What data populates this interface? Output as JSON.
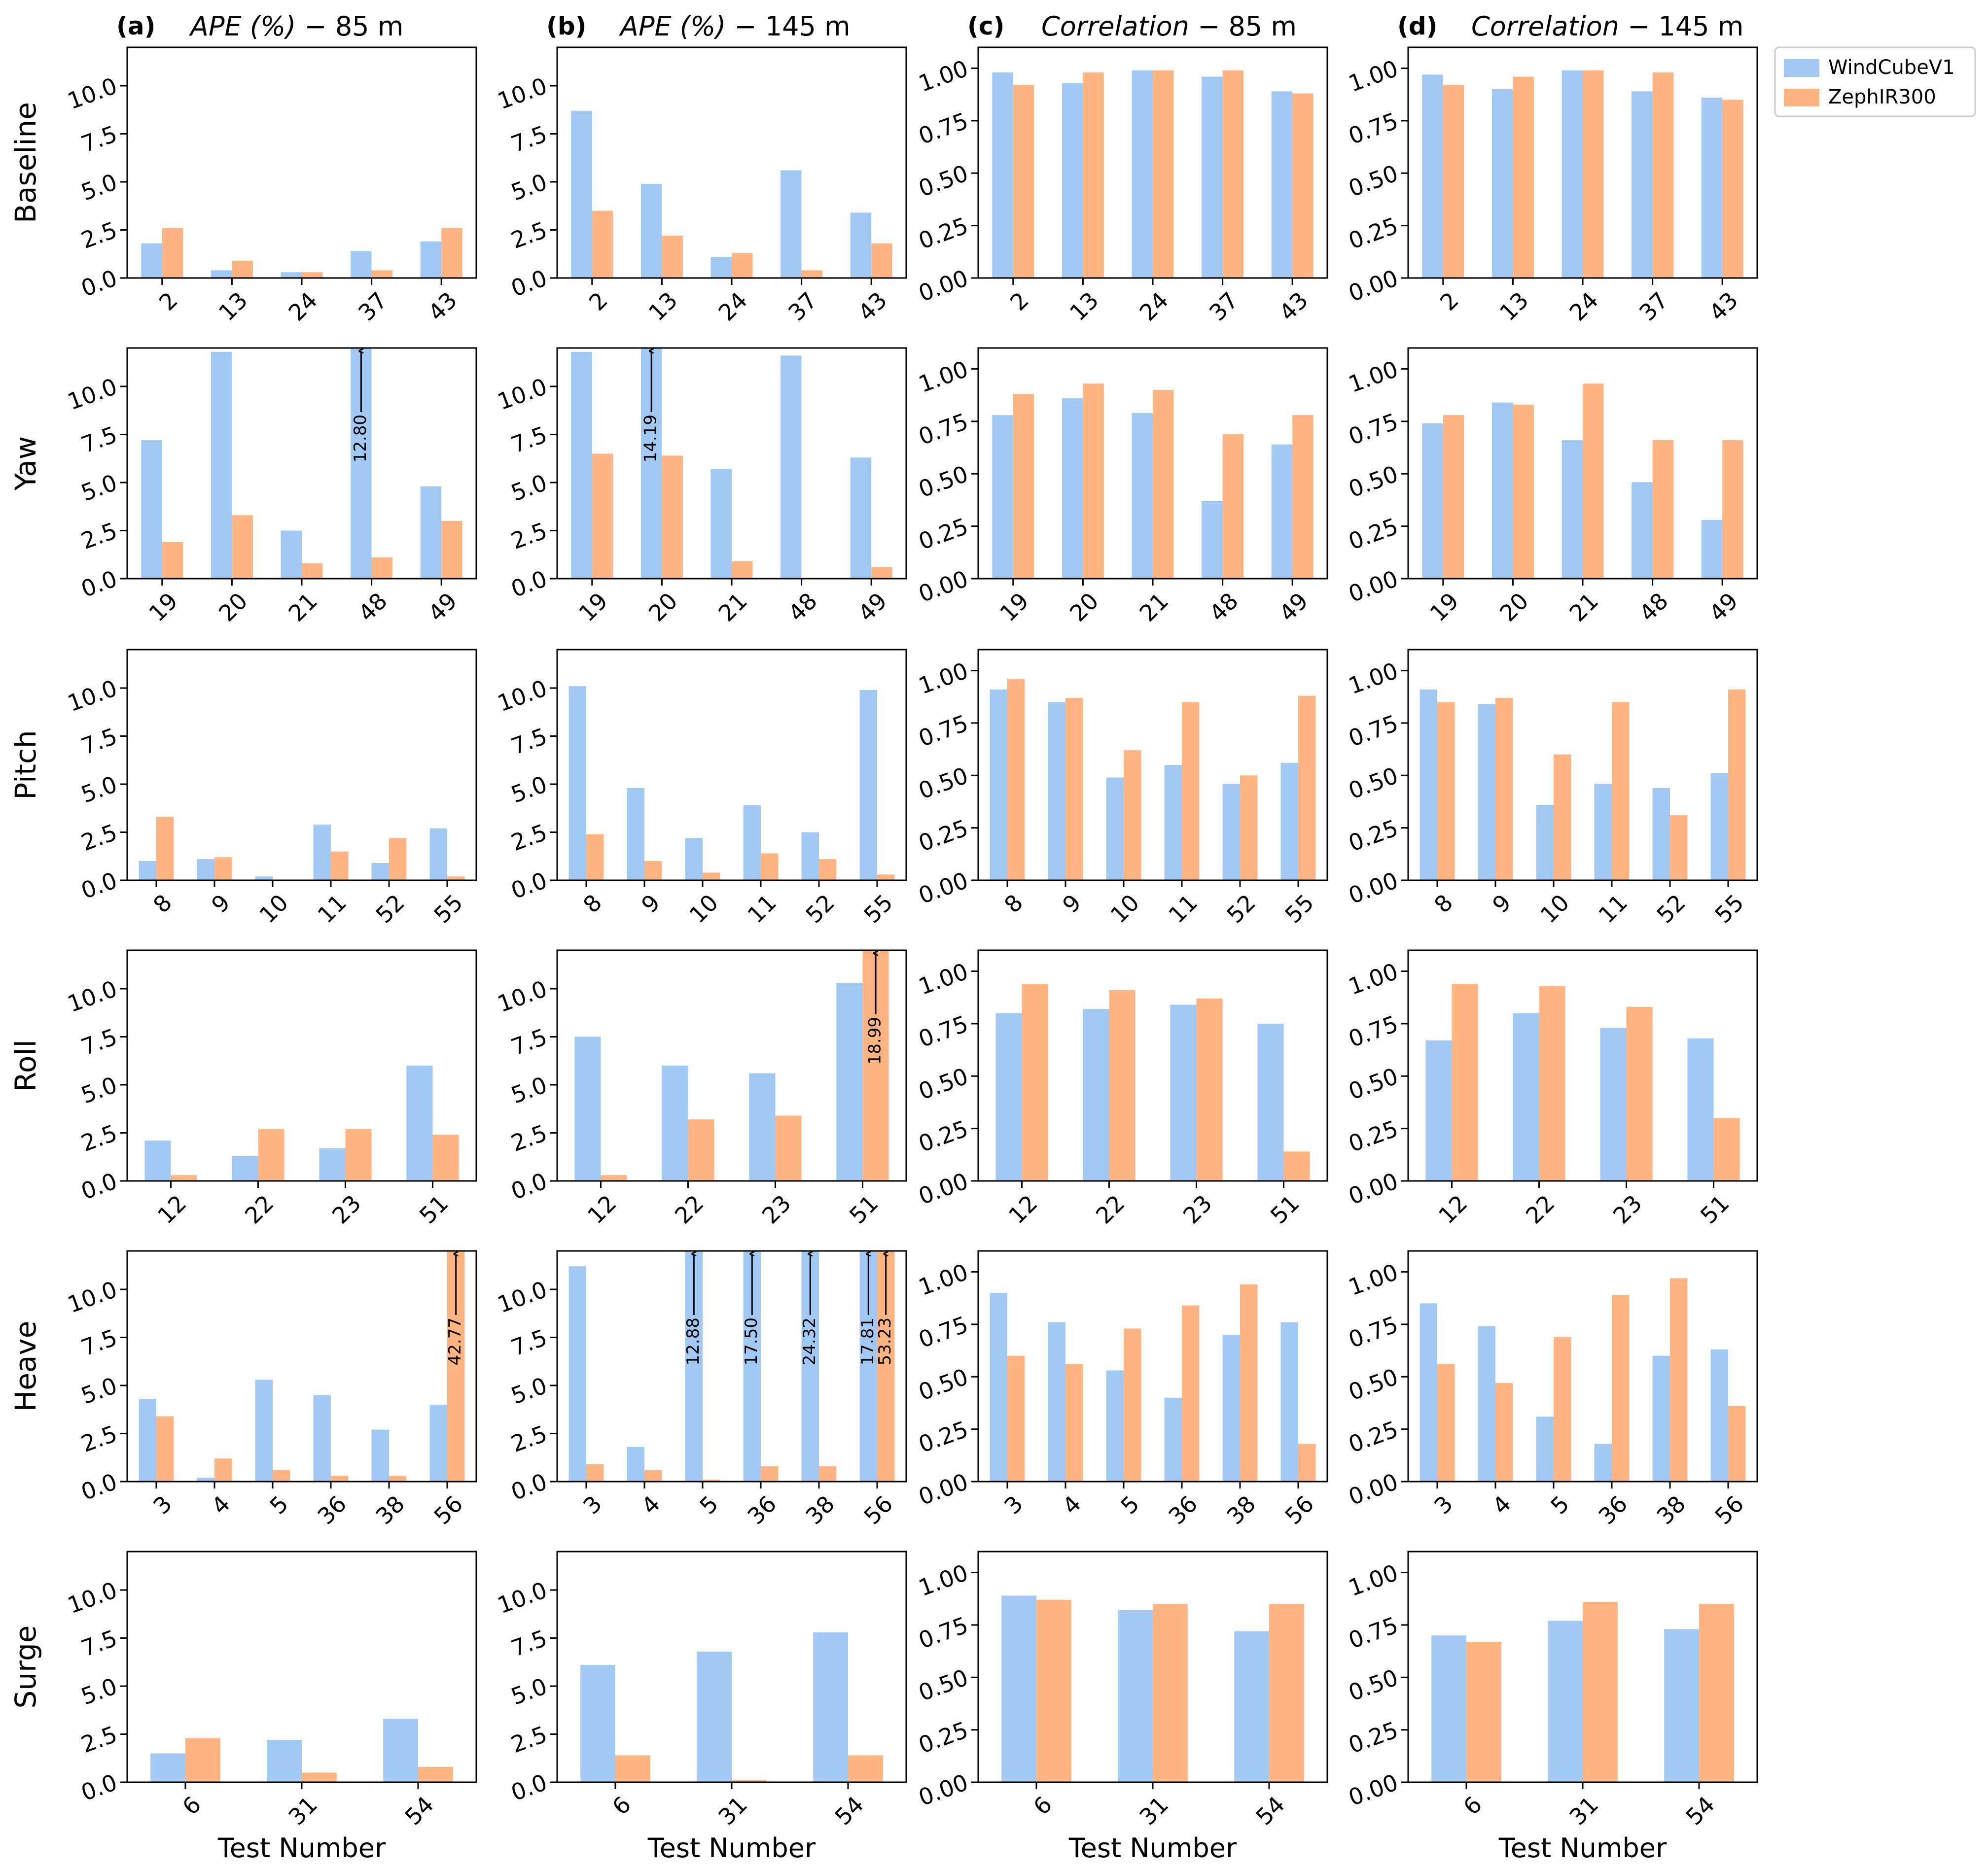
{
  "chart_data": {
    "type": "bar",
    "layout": "6 rows x 4 columns grid of grouped bar charts",
    "legend": {
      "position": "top-right",
      "entries": [
        {
          "name": "WindCubeV1",
          "color": "#a1c9f4"
        },
        {
          "name": "ZephIR300",
          "color": "#ffb482"
        }
      ]
    },
    "xlabel": "Test Number",
    "columns": [
      {
        "letter": "(a)",
        "metric": "APE (%)",
        "height": "85 m",
        "ylim": [
          0,
          12
        ],
        "yticks": [
          "0.0",
          "2.5",
          "5.0",
          "7.5",
          "10.0"
        ]
      },
      {
        "letter": "(b)",
        "metric": "APE (%)",
        "height": "145 m",
        "ylim": [
          0,
          12
        ],
        "yticks": [
          "0.0",
          "2.5",
          "5.0",
          "7.5",
          "10.0"
        ]
      },
      {
        "letter": "(c)",
        "metric": "Correlation",
        "height": "85 m",
        "ylim": [
          0,
          1.1
        ],
        "yticks": [
          "0.00",
          "0.25",
          "0.50",
          "0.75",
          "1.00"
        ]
      },
      {
        "letter": "(d)",
        "metric": "Correlation",
        "height": "145 m",
        "ylim": [
          0,
          1.1
        ],
        "yticks": [
          "0.00",
          "0.25",
          "0.50",
          "0.75",
          "1.00"
        ]
      }
    ],
    "rows": [
      {
        "label": "Baseline",
        "categories": [
          "2",
          "13",
          "24",
          "37",
          "43"
        ],
        "panels": [
          {
            "series": [
              {
                "name": "WindCubeV1",
                "values": [
                  1.8,
                  0.4,
                  0.3,
                  1.4,
                  1.9
                ]
              },
              {
                "name": "ZephIR300",
                "values": [
                  2.6,
                  0.9,
                  0.3,
                  0.4,
                  2.6
                ]
              }
            ],
            "annotations": []
          },
          {
            "series": [
              {
                "name": "WindCubeV1",
                "values": [
                  8.7,
                  4.9,
                  1.1,
                  5.6,
                  3.4
                ]
              },
              {
                "name": "ZephIR300",
                "values": [
                  3.5,
                  2.2,
                  1.3,
                  0.4,
                  1.8
                ]
              }
            ],
            "annotations": []
          },
          {
            "series": [
              {
                "name": "WindCubeV1",
                "values": [
                  0.98,
                  0.93,
                  0.99,
                  0.96,
                  0.89
                ]
              },
              {
                "name": "ZephIR300",
                "values": [
                  0.92,
                  0.98,
                  0.99,
                  0.99,
                  0.88
                ]
              }
            ],
            "annotations": []
          },
          {
            "series": [
              {
                "name": "WindCubeV1",
                "values": [
                  0.97,
                  0.9,
                  0.99,
                  0.89,
                  0.86
                ]
              },
              {
                "name": "ZephIR300",
                "values": [
                  0.92,
                  0.96,
                  0.99,
                  0.98,
                  0.85
                ]
              }
            ],
            "annotations": []
          }
        ]
      },
      {
        "label": "Yaw",
        "categories": [
          "19",
          "20",
          "21",
          "48",
          "49"
        ],
        "panels": [
          {
            "series": [
              {
                "name": "WindCubeV1",
                "values": [
                  7.2,
                  11.8,
                  2.5,
                  12.8,
                  4.8
                ]
              },
              {
                "name": "ZephIR300",
                "values": [
                  1.9,
                  3.3,
                  0.8,
                  1.1,
                  3.0
                ]
              }
            ],
            "annotations": [
              {
                "series": 0,
                "index": 3,
                "text": "12.80"
              }
            ]
          },
          {
            "series": [
              {
                "name": "WindCubeV1",
                "values": [
                  11.8,
                  14.19,
                  5.7,
                  11.6,
                  6.3
                ]
              },
              {
                "name": "ZephIR300",
                "values": [
                  6.5,
                  6.4,
                  0.9,
                  0.0,
                  0.6
                ]
              }
            ],
            "annotations": [
              {
                "series": 0,
                "index": 1,
                "text": "14.19"
              }
            ]
          },
          {
            "series": [
              {
                "name": "WindCubeV1",
                "values": [
                  0.78,
                  0.86,
                  0.79,
                  0.37,
                  0.64
                ]
              },
              {
                "name": "ZephIR300",
                "values": [
                  0.88,
                  0.93,
                  0.9,
                  0.69,
                  0.78
                ]
              }
            ],
            "annotations": []
          },
          {
            "series": [
              {
                "name": "WindCubeV1",
                "values": [
                  0.74,
                  0.84,
                  0.66,
                  0.46,
                  0.28
                ]
              },
              {
                "name": "ZephIR300",
                "values": [
                  0.78,
                  0.83,
                  0.93,
                  0.66,
                  0.66
                ]
              }
            ],
            "annotations": []
          }
        ]
      },
      {
        "label": "Pitch",
        "categories": [
          "8",
          "9",
          "10",
          "11",
          "52",
          "55"
        ],
        "panels": [
          {
            "series": [
              {
                "name": "WindCubeV1",
                "values": [
                  1.0,
                  1.1,
                  0.2,
                  2.9,
                  0.9,
                  2.7
                ]
              },
              {
                "name": "ZephIR300",
                "values": [
                  3.3,
                  1.2,
                  0.0,
                  1.5,
                  2.2,
                  0.2
                ]
              }
            ],
            "annotations": []
          },
          {
            "series": [
              {
                "name": "WindCubeV1",
                "values": [
                  10.1,
                  4.8,
                  2.2,
                  3.9,
                  2.5,
                  9.9
                ]
              },
              {
                "name": "ZephIR300",
                "values": [
                  2.4,
                  1.0,
                  0.4,
                  1.4,
                  1.1,
                  0.3
                ]
              }
            ],
            "annotations": []
          },
          {
            "series": [
              {
                "name": "WindCubeV1",
                "values": [
                  0.91,
                  0.85,
                  0.49,
                  0.55,
                  0.46,
                  0.56
                ]
              },
              {
                "name": "ZephIR300",
                "values": [
                  0.96,
                  0.87,
                  0.62,
                  0.85,
                  0.5,
                  0.88
                ]
              }
            ],
            "annotations": []
          },
          {
            "series": [
              {
                "name": "WindCubeV1",
                "values": [
                  0.91,
                  0.84,
                  0.36,
                  0.46,
                  0.44,
                  0.51
                ]
              },
              {
                "name": "ZephIR300",
                "values": [
                  0.85,
                  0.87,
                  0.6,
                  0.85,
                  0.31,
                  0.91
                ]
              }
            ],
            "annotations": []
          }
        ]
      },
      {
        "label": "Roll",
        "categories": [
          "12",
          "22",
          "23",
          "51"
        ],
        "panels": [
          {
            "series": [
              {
                "name": "WindCubeV1",
                "values": [
                  2.1,
                  1.3,
                  1.7,
                  6.0
                ]
              },
              {
                "name": "ZephIR300",
                "values": [
                  0.3,
                  2.7,
                  2.7,
                  2.4
                ]
              }
            ],
            "annotations": []
          },
          {
            "series": [
              {
                "name": "WindCubeV1",
                "values": [
                  7.5,
                  6.0,
                  5.6,
                  10.3
                ]
              },
              {
                "name": "ZephIR300",
                "values": [
                  0.3,
                  3.2,
                  3.4,
                  18.99
                ]
              }
            ],
            "annotations": [
              {
                "series": 1,
                "index": 3,
                "text": "18.99"
              }
            ]
          },
          {
            "series": [
              {
                "name": "WindCubeV1",
                "values": [
                  0.8,
                  0.82,
                  0.84,
                  0.75
                ]
              },
              {
                "name": "ZephIR300",
                "values": [
                  0.94,
                  0.91,
                  0.87,
                  0.14
                ]
              }
            ],
            "annotations": []
          },
          {
            "series": [
              {
                "name": "WindCubeV1",
                "values": [
                  0.67,
                  0.8,
                  0.73,
                  0.68
                ]
              },
              {
                "name": "ZephIR300",
                "values": [
                  0.94,
                  0.93,
                  0.83,
                  0.3
                ]
              }
            ],
            "annotations": []
          }
        ]
      },
      {
        "label": "Heave",
        "categories": [
          "3",
          "4",
          "5",
          "36",
          "38",
          "56"
        ],
        "panels": [
          {
            "series": [
              {
                "name": "WindCubeV1",
                "values": [
                  4.3,
                  0.2,
                  5.3,
                  4.5,
                  2.7,
                  4.0
                ]
              },
              {
                "name": "ZephIR300",
                "values": [
                  3.4,
                  1.2,
                  0.6,
                  0.3,
                  0.3,
                  42.77
                ]
              }
            ],
            "annotations": [
              {
                "series": 1,
                "index": 5,
                "text": "42.77"
              }
            ]
          },
          {
            "series": [
              {
                "name": "WindCubeV1",
                "values": [
                  11.2,
                  1.8,
                  12.88,
                  17.5,
                  24.32,
                  17.81
                ]
              },
              {
                "name": "ZephIR300",
                "values": [
                  0.9,
                  0.6,
                  0.1,
                  0.8,
                  0.8,
                  53.23
                ]
              }
            ],
            "annotations": [
              {
                "series": 0,
                "index": 2,
                "text": "12.88"
              },
              {
                "series": 0,
                "index": 3,
                "text": "17.50"
              },
              {
                "series": 0,
                "index": 4,
                "text": "24.32"
              },
              {
                "series": 0,
                "index": 5,
                "text": "17.81"
              },
              {
                "series": 1,
                "index": 5,
                "text": "53.23"
              }
            ]
          },
          {
            "series": [
              {
                "name": "WindCubeV1",
                "values": [
                  0.9,
                  0.76,
                  0.53,
                  0.4,
                  0.7,
                  0.76
                ]
              },
              {
                "name": "ZephIR300",
                "values": [
                  0.6,
                  0.56,
                  0.73,
                  0.84,
                  0.94,
                  0.18
                ]
              }
            ],
            "annotations": []
          },
          {
            "series": [
              {
                "name": "WindCubeV1",
                "values": [
                  0.85,
                  0.74,
                  0.31,
                  0.18,
                  0.6,
                  0.63
                ]
              },
              {
                "name": "ZephIR300",
                "values": [
                  0.56,
                  0.47,
                  0.69,
                  0.89,
                  0.97,
                  0.36
                ]
              }
            ],
            "annotations": []
          }
        ]
      },
      {
        "label": "Surge",
        "categories": [
          "6",
          "31",
          "54"
        ],
        "panels": [
          {
            "series": [
              {
                "name": "WindCubeV1",
                "values": [
                  1.5,
                  2.2,
                  3.3
                ]
              },
              {
                "name": "ZephIR300",
                "values": [
                  2.3,
                  0.5,
                  0.8
                ]
              }
            ],
            "annotations": []
          },
          {
            "series": [
              {
                "name": "WindCubeV1",
                "values": [
                  6.1,
                  6.8,
                  7.8
                ]
              },
              {
                "name": "ZephIR300",
                "values": [
                  1.4,
                  0.1,
                  1.4
                ]
              }
            ],
            "annotations": []
          },
          {
            "series": [
              {
                "name": "WindCubeV1",
                "values": [
                  0.89,
                  0.82,
                  0.72
                ]
              },
              {
                "name": "ZephIR300",
                "values": [
                  0.87,
                  0.85,
                  0.85
                ]
              }
            ],
            "annotations": []
          },
          {
            "series": [
              {
                "name": "WindCubeV1",
                "values": [
                  0.7,
                  0.77,
                  0.73
                ]
              },
              {
                "name": "ZephIR300",
                "values": [
                  0.67,
                  0.86,
                  0.85
                ]
              }
            ],
            "annotations": []
          }
        ]
      }
    ]
  }
}
